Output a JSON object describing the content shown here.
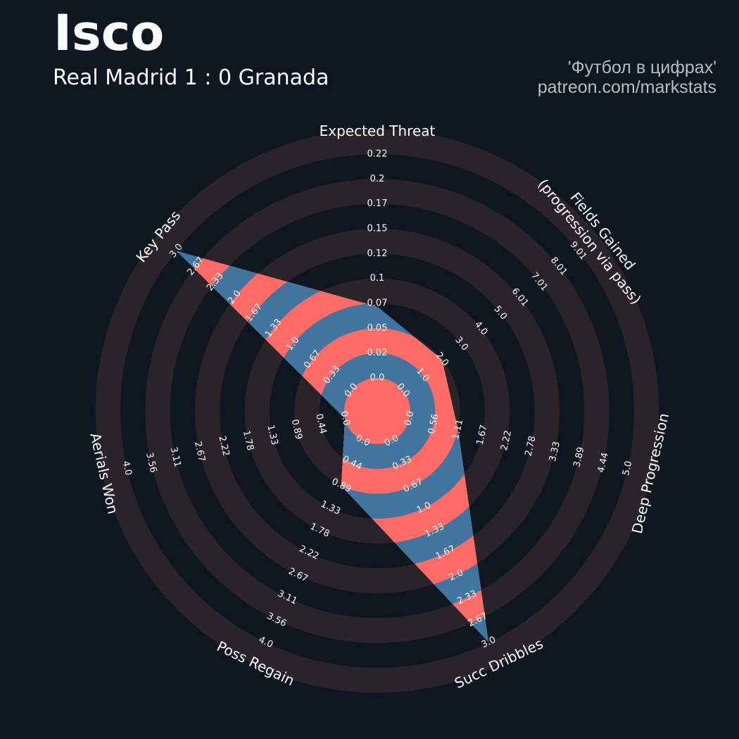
{
  "header": {
    "player": "Isco",
    "match": "Real Madrid 1 : 0 Granada",
    "credit_line1": "'Футбол в цифрах'",
    "credit_line2": "patreon.com/markstats"
  },
  "colors": {
    "background": "#0e1720",
    "ring": "#2a2329",
    "fill_blue": "#4274a0",
    "fill_red": "#ff6b67",
    "text": "#ffffff"
  },
  "chart_data": {
    "type": "radar",
    "axes": [
      {
        "label": "Expected Threat",
        "ticks": [
          "0.0",
          "0.02",
          "0.05",
          "0.07",
          "0.1",
          "0.12",
          "0.15",
          "0.17",
          "0.2",
          "0.22"
        ]
      },
      {
        "label": "Fields Gained\n(progression via pass)",
        "ticks": [
          "0.0",
          "1.0",
          "2.0",
          "3.0",
          "4.0",
          "5.0",
          "6.01",
          "7.01",
          "8.01",
          "9.01"
        ]
      },
      {
        "label": "Deep Progression",
        "ticks": [
          "0.0",
          "0.56",
          "1.11",
          "1.67",
          "2.22",
          "2.78",
          "3.33",
          "3.89",
          "4.44",
          "5.0"
        ]
      },
      {
        "label": "Succ Dribbles",
        "ticks": [
          "0.0",
          "0.33",
          "0.67",
          "1.0",
          "1.33",
          "1.67",
          "2.0",
          "2.33",
          "2.67",
          "3.0"
        ]
      },
      {
        "label": "Poss Regain",
        "ticks": [
          "0.0",
          "0.44",
          "0.89",
          "1.33",
          "1.78",
          "2.22",
          "2.67",
          "3.11",
          "3.56",
          "4.0"
        ]
      },
      {
        "label": "Aerials Won",
        "ticks": [
          "0.0",
          "0.44",
          "0.89",
          "1.33",
          "1.78",
          "2.22",
          "2.67",
          "3.11",
          "3.56",
          "4.0"
        ]
      },
      {
        "label": "Key Pass",
        "ticks": [
          "0.0",
          "0.33",
          "0.67",
          "1.0",
          "1.33",
          "1.67",
          "2.0",
          "2.33",
          "2.67",
          "3.0"
        ]
      }
    ],
    "values": [
      0.07,
      2.0,
      1.11,
      3.0,
      0.89,
      0.0,
      3.0
    ],
    "ranges": [
      [
        0,
        0.22
      ],
      [
        0,
        9.01
      ],
      [
        0,
        5.0
      ],
      [
        0,
        3.0
      ],
      [
        0,
        4.0
      ],
      [
        0,
        4.0
      ],
      [
        0,
        3.0
      ]
    ]
  }
}
